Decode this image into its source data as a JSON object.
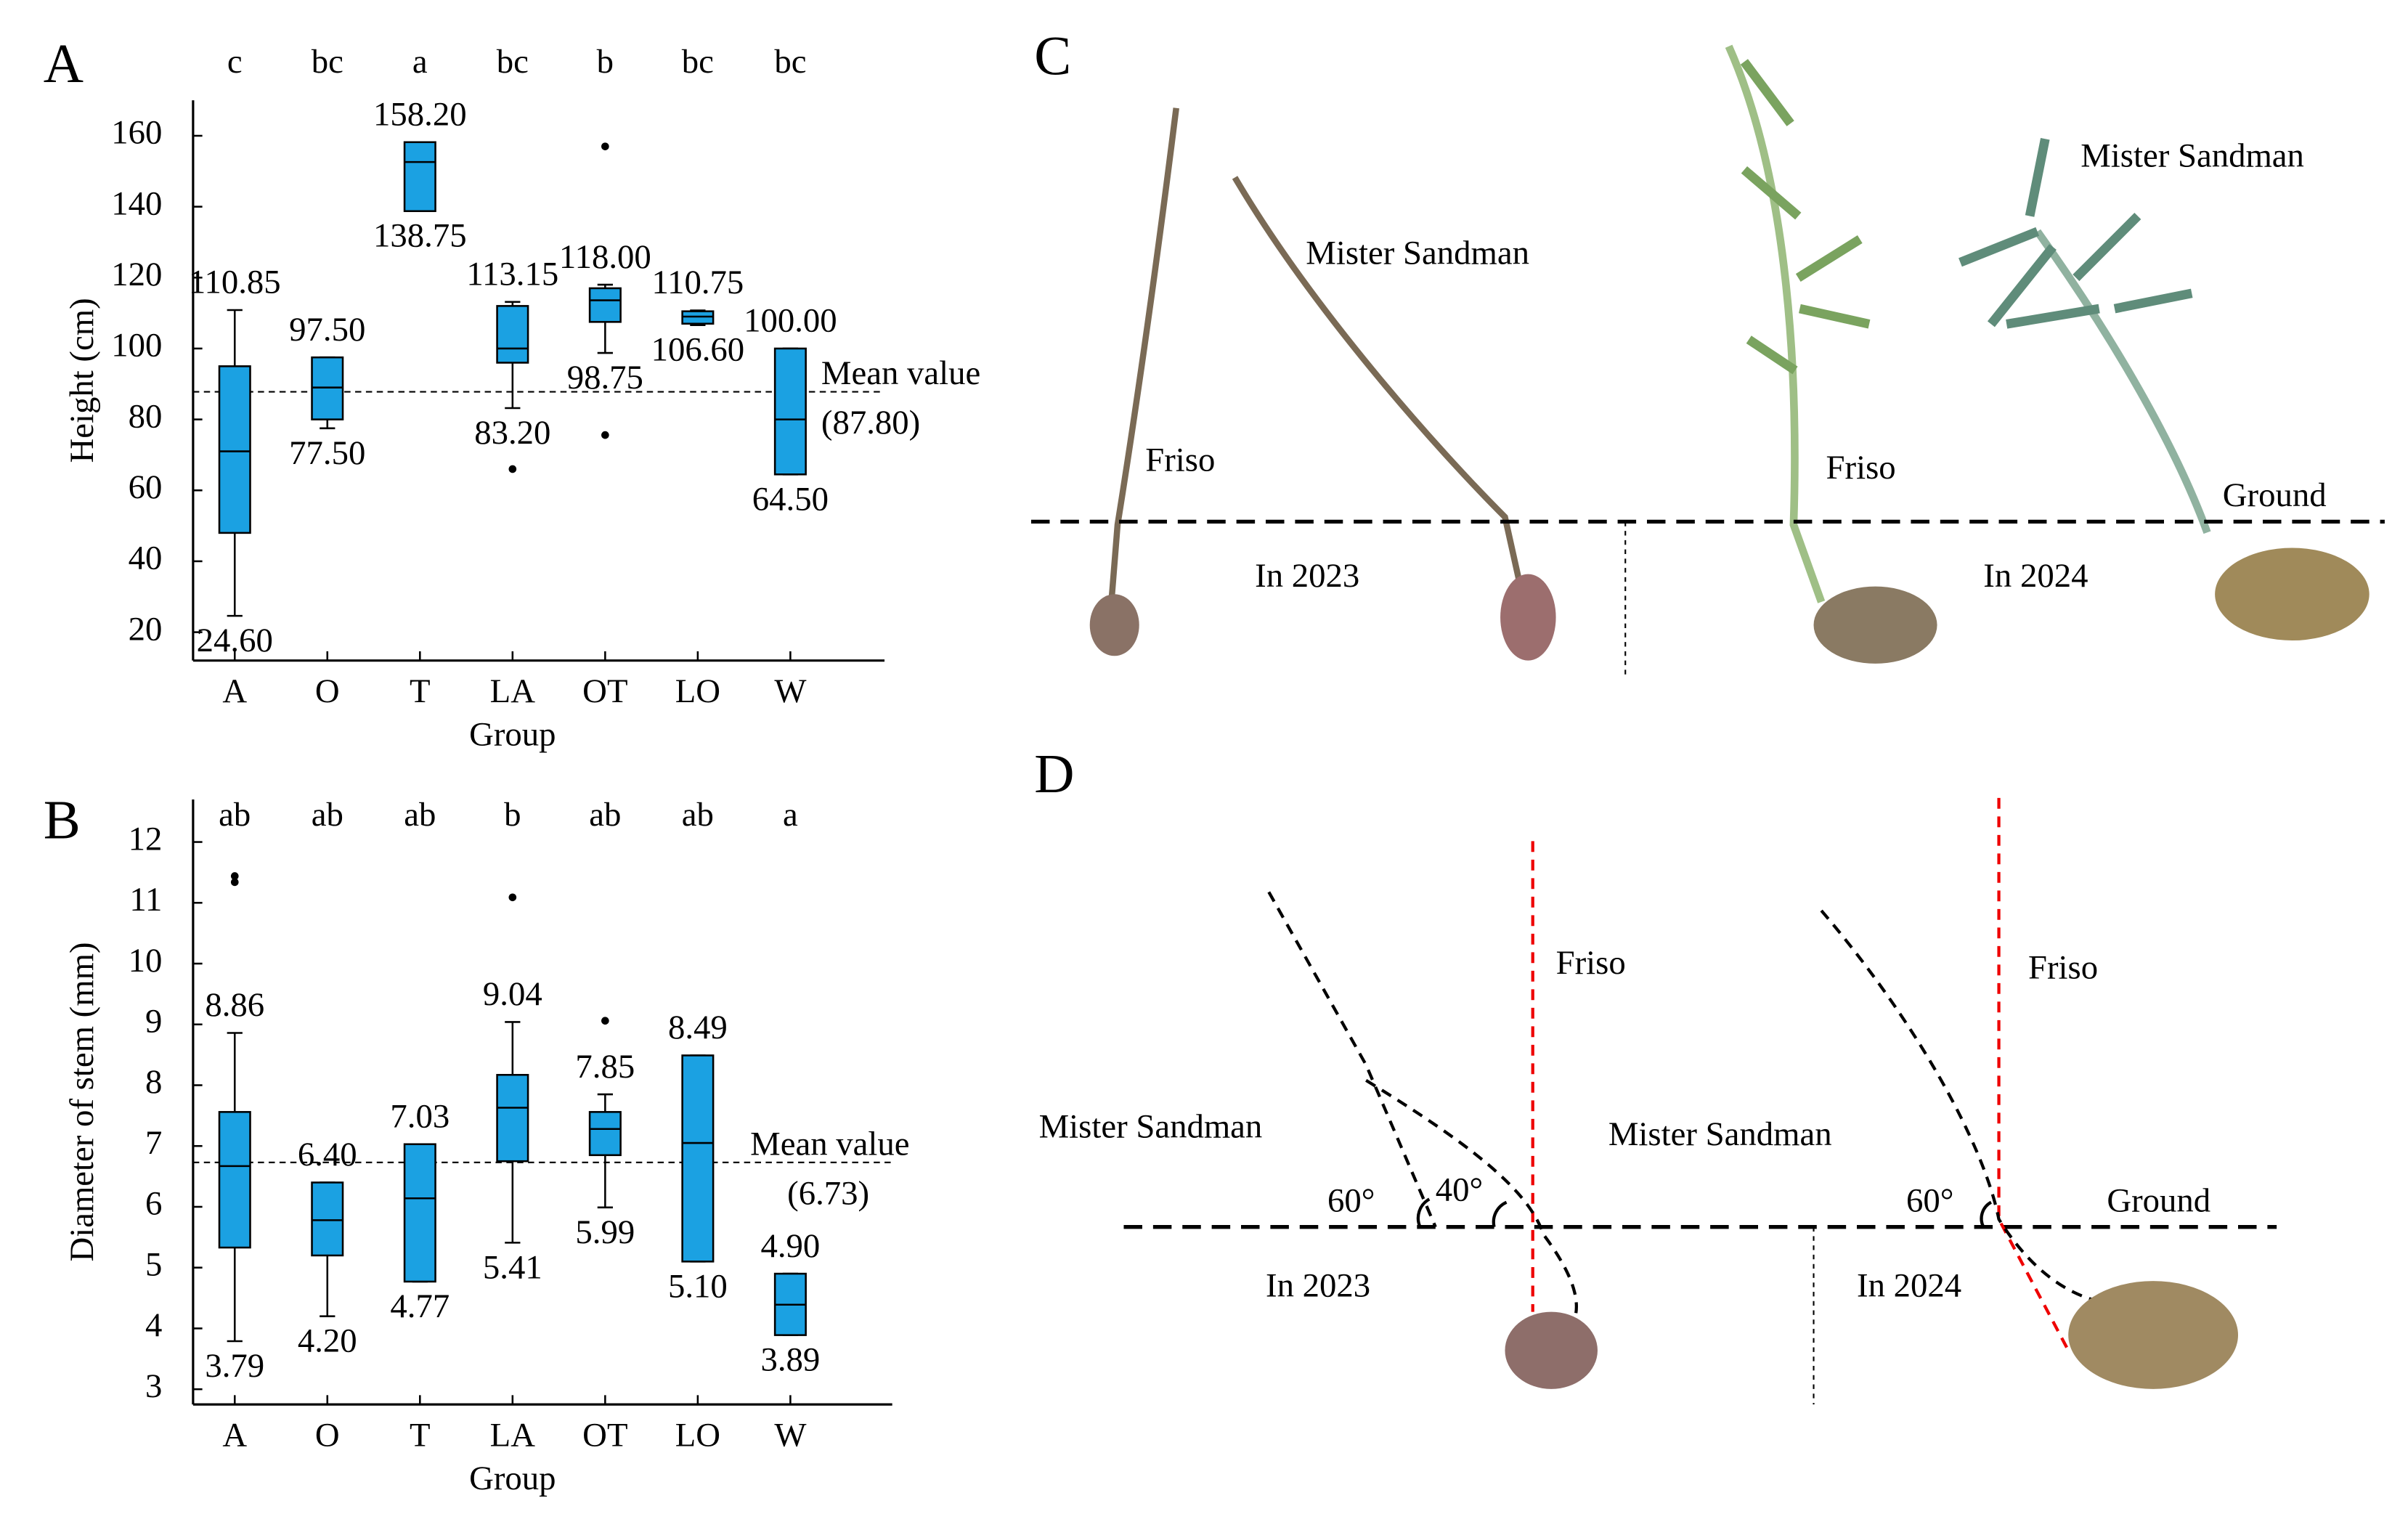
{
  "chart_data": [
    {
      "type": "box",
      "panel_label": "A",
      "ylabel": "Height (cm)",
      "xlabel": "Group",
      "categories": [
        "A",
        "O",
        "T",
        "LA",
        "OT",
        "LO",
        "W"
      ],
      "letters": [
        "c",
        "bc",
        "a",
        "bc",
        "b",
        "bc",
        "bc"
      ],
      "whisker_low": [
        24.6,
        77.5,
        138.75,
        83.2,
        98.75,
        106.6,
        64.5
      ],
      "q1": [
        48,
        80,
        138.75,
        96,
        107.5,
        107,
        64.5
      ],
      "median": [
        71,
        89,
        152.6,
        100,
        113.6,
        109,
        80
      ],
      "q3": [
        95,
        97.5,
        158.2,
        112,
        117,
        110.5,
        100
      ],
      "whisker_high": [
        110.85,
        97.5,
        158.2,
        113.15,
        118,
        110.75,
        100
      ],
      "whisker_high_labels": [
        "110.85",
        "97.50",
        "158.20",
        "113.15",
        "118.00",
        "110.75",
        "100.00"
      ],
      "whisker_low_labels": [
        "24.60",
        "77.50",
        "138.75",
        "83.20",
        "98.75",
        "106.60",
        "64.50"
      ],
      "outliers": [
        [],
        [],
        [],
        [
          66
        ],
        [
          157,
          75.6
        ],
        [],
        []
      ],
      "mean": 87.8,
      "mean_label": "(87.80)",
      "mean_text": "Mean value",
      "color": "#1ba1e2",
      "ylim": [
        12,
        170
      ],
      "yticks": [
        20,
        40,
        60,
        80,
        100,
        120,
        140,
        160
      ]
    },
    {
      "type": "box",
      "panel_label": "B",
      "ylabel": "Diameter of stem (mm)",
      "xlabel": "Group",
      "categories": [
        "A",
        "O",
        "T",
        "LA",
        "OT",
        "LO",
        "W"
      ],
      "letters": [
        "ab",
        "ab",
        "ab",
        "b",
        "ab",
        "ab",
        "a"
      ],
      "whisker_low": [
        3.79,
        4.2,
        4.77,
        5.41,
        5.99,
        5.1,
        3.89
      ],
      "q1": [
        5.33,
        5.2,
        4.77,
        6.75,
        6.85,
        5.1,
        3.89
      ],
      "median": [
        6.67,
        5.78,
        6.14,
        7.63,
        7.28,
        7.05,
        4.39
      ],
      "q3": [
        7.56,
        6.4,
        7.03,
        8.17,
        7.56,
        8.49,
        4.9
      ],
      "whisker_high": [
        8.86,
        6.4,
        7.03,
        9.04,
        7.85,
        8.49,
        4.9
      ],
      "whisker_high_labels": [
        "8.86",
        "6.40",
        "7.03",
        "9.04",
        "7.85",
        "8.49",
        "4.90"
      ],
      "whisker_low_labels": [
        "3.79",
        "4.20",
        "4.77",
        "5.41",
        "5.99",
        "5.10",
        "3.89"
      ],
      "outliers": [
        [
          11.44,
          11.34
        ],
        [],
        [],
        [
          11.09
        ],
        [
          9.06
        ],
        [],
        []
      ],
      "mean": 6.73,
      "mean_label": "(6.73)",
      "mean_text": "Mean value",
      "color": "#1ba1e2",
      "ylim": [
        2.75,
        12.7
      ],
      "yticks": [
        3,
        4,
        5,
        6,
        7,
        8,
        9,
        10,
        11,
        12
      ]
    }
  ],
  "photo_panel": {
    "label": "C",
    "texts": [
      "Friso",
      "Mister Sandman",
      "In 2023",
      "Friso",
      "Mister Sandman",
      "In 2024",
      "Ground"
    ]
  },
  "diagram_panel": {
    "label": "D",
    "texts": [
      "Friso",
      "Mister Sandman",
      "Mister Sandman",
      "60°",
      "40°",
      "In 2023",
      "Friso",
      "60°",
      "Ground",
      "In 2024"
    ]
  }
}
